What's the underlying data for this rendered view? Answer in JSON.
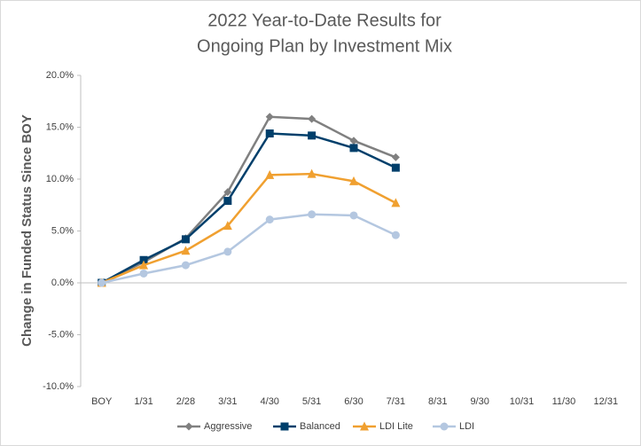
{
  "chart_data": {
    "type": "line",
    "title": [
      "2022 Year-to-Date Results for",
      "Ongoing Plan by Investment Mix"
    ],
    "y_label": "Change in Funded Status Since BOY",
    "categories": [
      "BOY",
      "1/31",
      "2/28",
      "3/31",
      "4/30",
      "5/31",
      "6/30",
      "7/31",
      "8/31",
      "9/30",
      "10/31",
      "11/30",
      "12/31"
    ],
    "series": [
      {
        "name": "Aggressive",
        "color": "#808080",
        "marker": "diamond",
        "values": [
          0,
          2.0,
          4.3,
          8.75,
          16.0,
          15.8,
          13.7,
          12.1,
          null,
          null,
          null,
          null,
          null
        ]
      },
      {
        "name": "Balanced",
        "color": "#003f6b",
        "marker": "square",
        "values": [
          0,
          2.2,
          4.2,
          7.9,
          14.4,
          14.2,
          13.0,
          11.1,
          null,
          null,
          null,
          null,
          null
        ]
      },
      {
        "name": "LDI Lite",
        "color": "#f0a030",
        "marker": "triangle",
        "values": [
          0,
          1.7,
          3.1,
          5.5,
          10.4,
          10.5,
          9.8,
          7.7,
          null,
          null,
          null,
          null,
          null
        ]
      },
      {
        "name": "LDI",
        "color": "#b4c7e0",
        "marker": "circle",
        "values": [
          0,
          0.9,
          1.7,
          3.0,
          6.1,
          6.6,
          6.5,
          4.6,
          null,
          null,
          null,
          null,
          null
        ]
      }
    ],
    "ylim": [
      -10,
      20
    ],
    "yticks": [
      {
        "value": -10,
        "label": "-10.0%"
      },
      {
        "value": -5,
        "label": "-5.0%"
      },
      {
        "value": 0,
        "label": "0.0%"
      },
      {
        "value": 5,
        "label": "5.0%"
      },
      {
        "value": 10,
        "label": "10.0%"
      },
      {
        "value": 15,
        "label": "15.0%"
      },
      {
        "value": 20,
        "label": "20.0%"
      }
    ],
    "grid": false,
    "legend": "bottom"
  }
}
